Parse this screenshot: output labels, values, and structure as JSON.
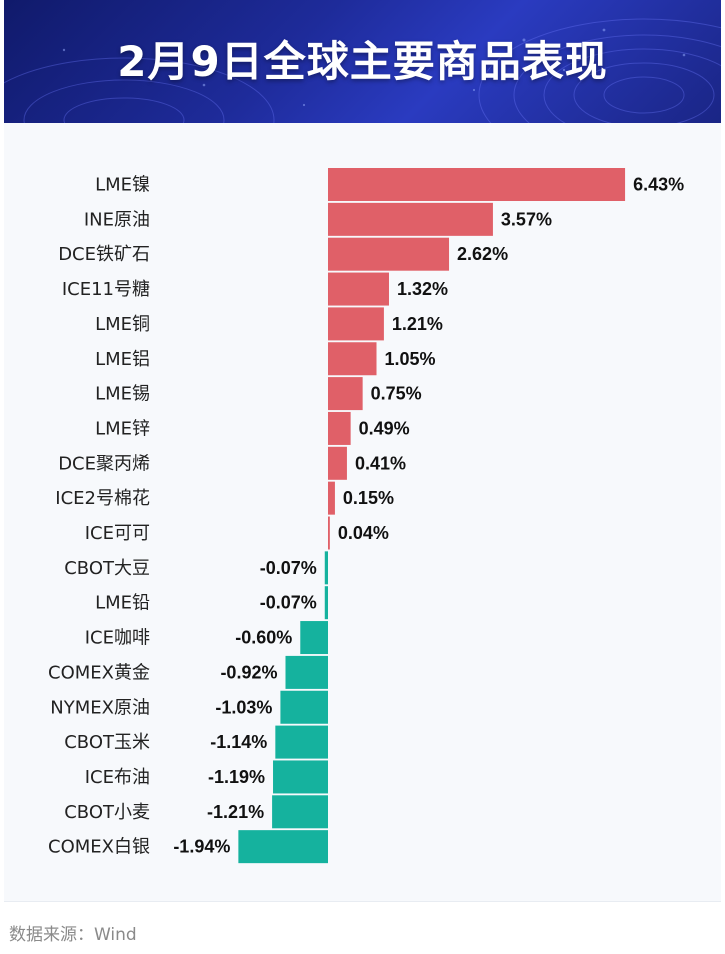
{
  "header": {
    "title": "2月9日全球主要商品表现"
  },
  "source": "数据来源：Wind",
  "colors": {
    "positive": "#e06068",
    "negative": "#15b29e",
    "header_bg": "#1e2b9a"
  },
  "chart_data": {
    "type": "bar",
    "orientation": "horizontal",
    "title": "2月9日全球主要商品表现",
    "categories": [
      "LME镍",
      "INE原油",
      "DCE铁矿石",
      "ICE11号糖",
      "LME铜",
      "LME铝",
      "LME锡",
      "LME锌",
      "DCE聚丙烯",
      "ICE2号棉花",
      "ICE可可",
      "CBOT大豆",
      "LME铅",
      "ICE咖啡",
      "COMEX黄金",
      "NYMEX原油",
      "CBOT玉米",
      "ICE布油",
      "CBOT小麦",
      "COMEX白银"
    ],
    "values": [
      6.43,
      3.57,
      2.62,
      1.32,
      1.21,
      1.05,
      0.75,
      0.49,
      0.41,
      0.15,
      0.04,
      -0.07,
      -0.07,
      -0.6,
      -0.92,
      -1.03,
      -1.14,
      -1.19,
      -1.21,
      -1.94
    ],
    "value_labels": [
      "6.43%",
      "3.57%",
      "2.62%",
      "1.32%",
      "1.21%",
      "1.05%",
      "0.75%",
      "0.49%",
      "0.41%",
      "0.15%",
      "0.04%",
      "-0.07%",
      "-0.07%",
      "-0.60%",
      "-0.92%",
      "-1.03%",
      "-1.14%",
      "-1.19%",
      "-1.21%",
      "-1.94%"
    ],
    "unit": "%",
    "grid": false,
    "legend": "none"
  }
}
